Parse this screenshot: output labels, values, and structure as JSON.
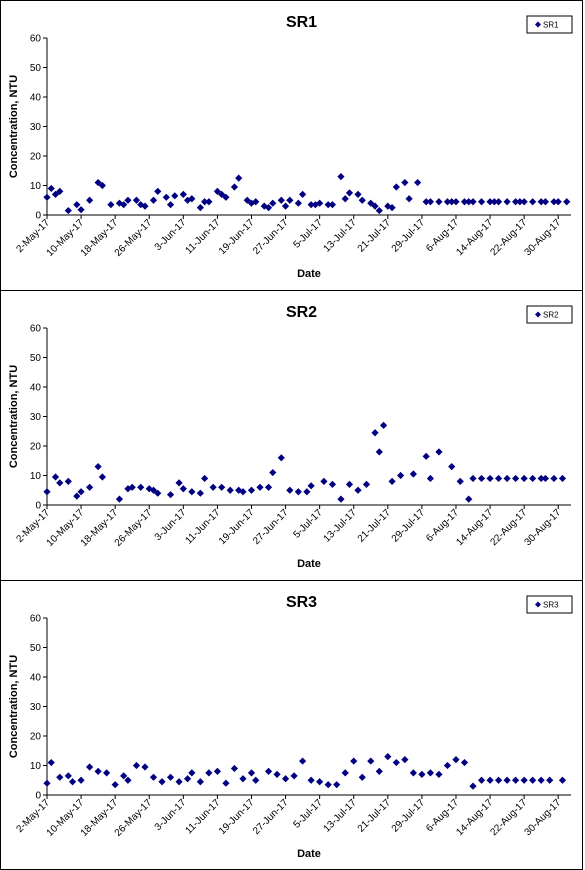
{
  "colors": {
    "marker": "#000080",
    "axis": "#000000",
    "background": "#ffffff"
  },
  "chart_data": [
    {
      "type": "scatter",
      "title": "SR1",
      "xlabel": "Date",
      "ylabel": "Concentration, NTU",
      "ylim": [
        0,
        60
      ],
      "yticks": [
        0,
        10,
        20,
        30,
        40,
        50,
        60
      ],
      "xlim": [
        "2017-05-02",
        "2017-09-02"
      ],
      "xtick_labels": [
        "2-May-17",
        "10-May-17",
        "18-May-17",
        "26-May-17",
        "3-Jun-17",
        "11-Jun-17",
        "19-Jun-17",
        "27-Jun-17",
        "5-Jul-17",
        "13-Jul-17",
        "21-Jul-17",
        "29-Jul-17",
        "6-Aug-17",
        "14-Aug-17",
        "22-Aug-17",
        "30-Aug-17"
      ],
      "legend": "top-right",
      "series": [
        {
          "name": "SR1",
          "x": [
            "2017-05-02",
            "2017-05-03",
            "2017-05-04",
            "2017-05-05",
            "2017-05-07",
            "2017-05-09",
            "2017-05-10",
            "2017-05-12",
            "2017-05-14",
            "2017-05-15",
            "2017-05-17",
            "2017-05-19",
            "2017-05-20",
            "2017-05-21",
            "2017-05-23",
            "2017-05-24",
            "2017-05-25",
            "2017-05-27",
            "2017-05-28",
            "2017-05-30",
            "2017-05-31",
            "2017-06-01",
            "2017-06-03",
            "2017-06-04",
            "2017-06-05",
            "2017-06-07",
            "2017-06-08",
            "2017-06-09",
            "2017-06-11",
            "2017-06-12",
            "2017-06-13",
            "2017-06-15",
            "2017-06-16",
            "2017-06-18",
            "2017-06-19",
            "2017-06-20",
            "2017-06-22",
            "2017-06-23",
            "2017-06-24",
            "2017-06-26",
            "2017-06-27",
            "2017-06-28",
            "2017-06-30",
            "2017-07-01",
            "2017-07-03",
            "2017-07-04",
            "2017-07-05",
            "2017-07-07",
            "2017-07-08",
            "2017-07-10",
            "2017-07-11",
            "2017-07-12",
            "2017-07-14",
            "2017-07-15",
            "2017-07-17",
            "2017-07-18",
            "2017-07-19",
            "2017-07-21",
            "2017-07-22",
            "2017-07-23",
            "2017-07-25",
            "2017-07-26",
            "2017-07-28",
            "2017-07-30",
            "2017-07-31",
            "2017-08-02",
            "2017-08-04",
            "2017-08-05",
            "2017-08-06",
            "2017-08-08",
            "2017-08-09",
            "2017-08-10",
            "2017-08-12",
            "2017-08-14",
            "2017-08-15",
            "2017-08-16",
            "2017-08-18",
            "2017-08-20",
            "2017-08-21",
            "2017-08-22",
            "2017-08-24",
            "2017-08-26",
            "2017-08-27",
            "2017-08-29",
            "2017-08-30",
            "2017-09-01"
          ],
          "y": [
            6,
            9,
            7,
            8,
            1.5,
            3.5,
            1.8,
            5,
            11,
            10,
            3.5,
            4,
            3.5,
            5,
            5,
            3.5,
            3,
            5,
            8,
            6,
            3.5,
            6.5,
            7,
            5,
            5.5,
            2.5,
            4.5,
            4.5,
            8,
            7,
            6,
            9.5,
            12.5,
            5,
            4,
            4.5,
            3,
            2.5,
            4,
            5,
            3,
            5,
            4,
            7,
            3.5,
            3.5,
            4,
            3.5,
            3.5,
            13,
            5.5,
            7.5,
            7,
            5,
            4,
            3,
            1.5,
            3,
            2.5,
            9.5,
            11,
            5.5,
            11,
            4.5,
            4.5,
            4.5,
            4.5,
            4.5,
            4.5,
            4.5,
            4.5,
            4.5,
            4.5,
            4.5,
            4.5,
            4.5,
            4.5,
            4.5,
            4.5,
            4.5,
            4.5,
            4.5,
            4.5,
            4.5,
            4.5,
            4.5
          ]
        }
      ]
    },
    {
      "type": "scatter",
      "title": "SR2",
      "xlabel": "Date",
      "ylabel": "Concentration, NTU",
      "ylim": [
        0,
        60
      ],
      "yticks": [
        0,
        10,
        20,
        30,
        40,
        50,
        60
      ],
      "xlim": [
        "2017-05-02",
        "2017-09-02"
      ],
      "xtick_labels": [
        "2-May-17",
        "10-May-17",
        "18-May-17",
        "26-May-17",
        "3-Jun-17",
        "11-Jun-17",
        "19-Jun-17",
        "27-Jun-17",
        "5-Jul-17",
        "13-Jul-17",
        "21-Jul-17",
        "29-Jul-17",
        "6-Aug-17",
        "14-Aug-17",
        "22-Aug-17",
        "30-Aug-17"
      ],
      "legend": "top-right",
      "series": [
        {
          "name": "SR2",
          "x": [
            "2017-05-02",
            "2017-05-04",
            "2017-05-05",
            "2017-05-07",
            "2017-05-09",
            "2017-05-10",
            "2017-05-12",
            "2017-05-14",
            "2017-05-15",
            "2017-05-19",
            "2017-05-21",
            "2017-05-22",
            "2017-05-24",
            "2017-05-26",
            "2017-05-27",
            "2017-05-28",
            "2017-05-31",
            "2017-06-02",
            "2017-06-03",
            "2017-06-05",
            "2017-06-07",
            "2017-06-08",
            "2017-06-10",
            "2017-06-12",
            "2017-06-14",
            "2017-06-16",
            "2017-06-17",
            "2017-06-19",
            "2017-06-21",
            "2017-06-23",
            "2017-06-24",
            "2017-06-26",
            "2017-06-28",
            "2017-06-30",
            "2017-07-02",
            "2017-07-03",
            "2017-07-06",
            "2017-07-08",
            "2017-07-10",
            "2017-07-12",
            "2017-07-14",
            "2017-07-16",
            "2017-07-18",
            "2017-07-19",
            "2017-07-20",
            "2017-07-22",
            "2017-07-24",
            "2017-07-27",
            "2017-07-30",
            "2017-07-31",
            "2017-08-02",
            "2017-08-05",
            "2017-08-07",
            "2017-08-09",
            "2017-08-10",
            "2017-08-12",
            "2017-08-14",
            "2017-08-16",
            "2017-08-18",
            "2017-08-20",
            "2017-08-22",
            "2017-08-24",
            "2017-08-26",
            "2017-08-27",
            "2017-08-29",
            "2017-08-31"
          ],
          "y": [
            4.5,
            9.5,
            7.5,
            8,
            3,
            4.5,
            6,
            13,
            9.5,
            2,
            5.5,
            6,
            6,
            5.5,
            5,
            4,
            3.5,
            7.5,
            5.5,
            4.5,
            4,
            9,
            6,
            6,
            5,
            5,
            4.5,
            5,
            6,
            6,
            11,
            16,
            5,
            4.5,
            4.5,
            6.5,
            8,
            7,
            2,
            7,
            5,
            7,
            24.5,
            18,
            27,
            8,
            10,
            10.5,
            16.5,
            9,
            18,
            13,
            8,
            2,
            9,
            9,
            9,
            9,
            9,
            9,
            9,
            9,
            9,
            9,
            9,
            9
          ]
        }
      ]
    },
    {
      "type": "scatter",
      "title": "SR3",
      "xlabel": "Date",
      "ylabel": "Concentration, NTU",
      "ylim": [
        0,
        60
      ],
      "yticks": [
        0,
        10,
        20,
        30,
        40,
        50,
        60
      ],
      "xlim": [
        "2017-05-02",
        "2017-09-02"
      ],
      "xtick_labels": [
        "2-May-17",
        "10-May-17",
        "18-May-17",
        "26-May-17",
        "3-Jun-17",
        "11-Jun-17",
        "19-Jun-17",
        "27-Jun-17",
        "5-Jul-17",
        "13-Jul-17",
        "21-Jul-17",
        "29-Jul-17",
        "6-Aug-17",
        "14-Aug-17",
        "22-Aug-17",
        "30-Aug-17"
      ],
      "legend": "top-right",
      "series": [
        {
          "name": "SR3",
          "x": [
            "2017-05-02",
            "2017-05-03",
            "2017-05-05",
            "2017-05-07",
            "2017-05-08",
            "2017-05-10",
            "2017-05-12",
            "2017-05-14",
            "2017-05-16",
            "2017-05-18",
            "2017-05-20",
            "2017-05-21",
            "2017-05-23",
            "2017-05-25",
            "2017-05-27",
            "2017-05-29",
            "2017-05-31",
            "2017-06-02",
            "2017-06-04",
            "2017-06-05",
            "2017-06-07",
            "2017-06-09",
            "2017-06-11",
            "2017-06-13",
            "2017-06-15",
            "2017-06-17",
            "2017-06-19",
            "2017-06-20",
            "2017-06-23",
            "2017-06-25",
            "2017-06-27",
            "2017-06-29",
            "2017-07-01",
            "2017-07-03",
            "2017-07-05",
            "2017-07-07",
            "2017-07-09",
            "2017-07-11",
            "2017-07-13",
            "2017-07-15",
            "2017-07-17",
            "2017-07-19",
            "2017-07-21",
            "2017-07-23",
            "2017-07-25",
            "2017-07-27",
            "2017-07-29",
            "2017-07-31",
            "2017-08-02",
            "2017-08-04",
            "2017-08-06",
            "2017-08-08",
            "2017-08-10",
            "2017-08-12",
            "2017-08-14",
            "2017-08-16",
            "2017-08-18",
            "2017-08-20",
            "2017-08-22",
            "2017-08-24",
            "2017-08-26",
            "2017-08-28",
            "2017-08-31"
          ],
          "y": [
            4,
            11,
            6,
            6.5,
            4.5,
            5,
            9.5,
            8,
            7.5,
            3.5,
            6.5,
            5,
            10,
            9.5,
            6,
            4.5,
            6,
            4.5,
            5.5,
            7.5,
            4.5,
            7.5,
            8,
            4,
            9,
            5.5,
            7.5,
            5,
            8,
            7,
            5.5,
            6.5,
            11.5,
            5,
            4.5,
            3.5,
            3.5,
            7.5,
            11.5,
            6,
            11.5,
            8,
            13,
            11,
            12,
            7.5,
            7,
            7.5,
            7,
            10,
            12,
            11,
            3,
            5,
            5,
            5,
            5,
            5,
            5,
            5,
            5,
            5,
            5
          ]
        }
      ]
    }
  ]
}
